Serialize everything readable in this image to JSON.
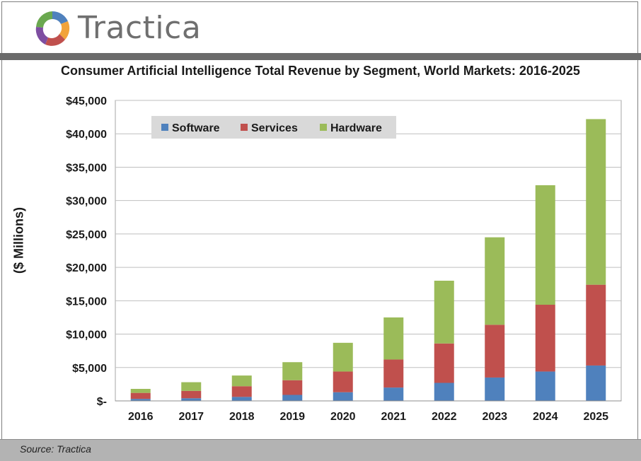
{
  "brand": {
    "name": "Tractica"
  },
  "colors": {
    "software": "#4f81bd",
    "services": "#c0504d",
    "hardware": "#9bbb59"
  },
  "footer": {
    "source": "Source: Tractica"
  },
  "chart_data": {
    "type": "bar",
    "stacked": true,
    "title": "Consumer Artificial Intelligence Total Revenue by Segment, World Markets: 2016-2025",
    "xlabel": "",
    "ylabel": "($ Millions)",
    "ylim": [
      0,
      45000
    ],
    "yticks": [
      0,
      5000,
      10000,
      15000,
      20000,
      25000,
      30000,
      35000,
      40000,
      45000
    ],
    "ytick_labels": [
      "$-",
      "$5,000",
      "$10,000",
      "$15,000",
      "$20,000",
      "$25,000",
      "$30,000",
      "$35,000",
      "$40,000",
      "$45,000"
    ],
    "grid": true,
    "legend_position": "top-left",
    "categories": [
      "2016",
      "2017",
      "2018",
      "2019",
      "2020",
      "2021",
      "2022",
      "2023",
      "2024",
      "2025"
    ],
    "series": [
      {
        "name": "Software",
        "color": "#4f81bd",
        "values": [
          300,
          400,
          600,
          900,
          1300,
          2000,
          2700,
          3500,
          4400,
          5300
        ]
      },
      {
        "name": "Services",
        "color": "#c0504d",
        "values": [
          900,
          1100,
          1600,
          2200,
          3100,
          4200,
          5900,
          7900,
          10000,
          12100
        ]
      },
      {
        "name": "Hardware",
        "color": "#9bbb59",
        "values": [
          600,
          1300,
          1600,
          2700,
          4300,
          6300,
          9400,
          13100,
          17900,
          24800
        ]
      }
    ]
  }
}
